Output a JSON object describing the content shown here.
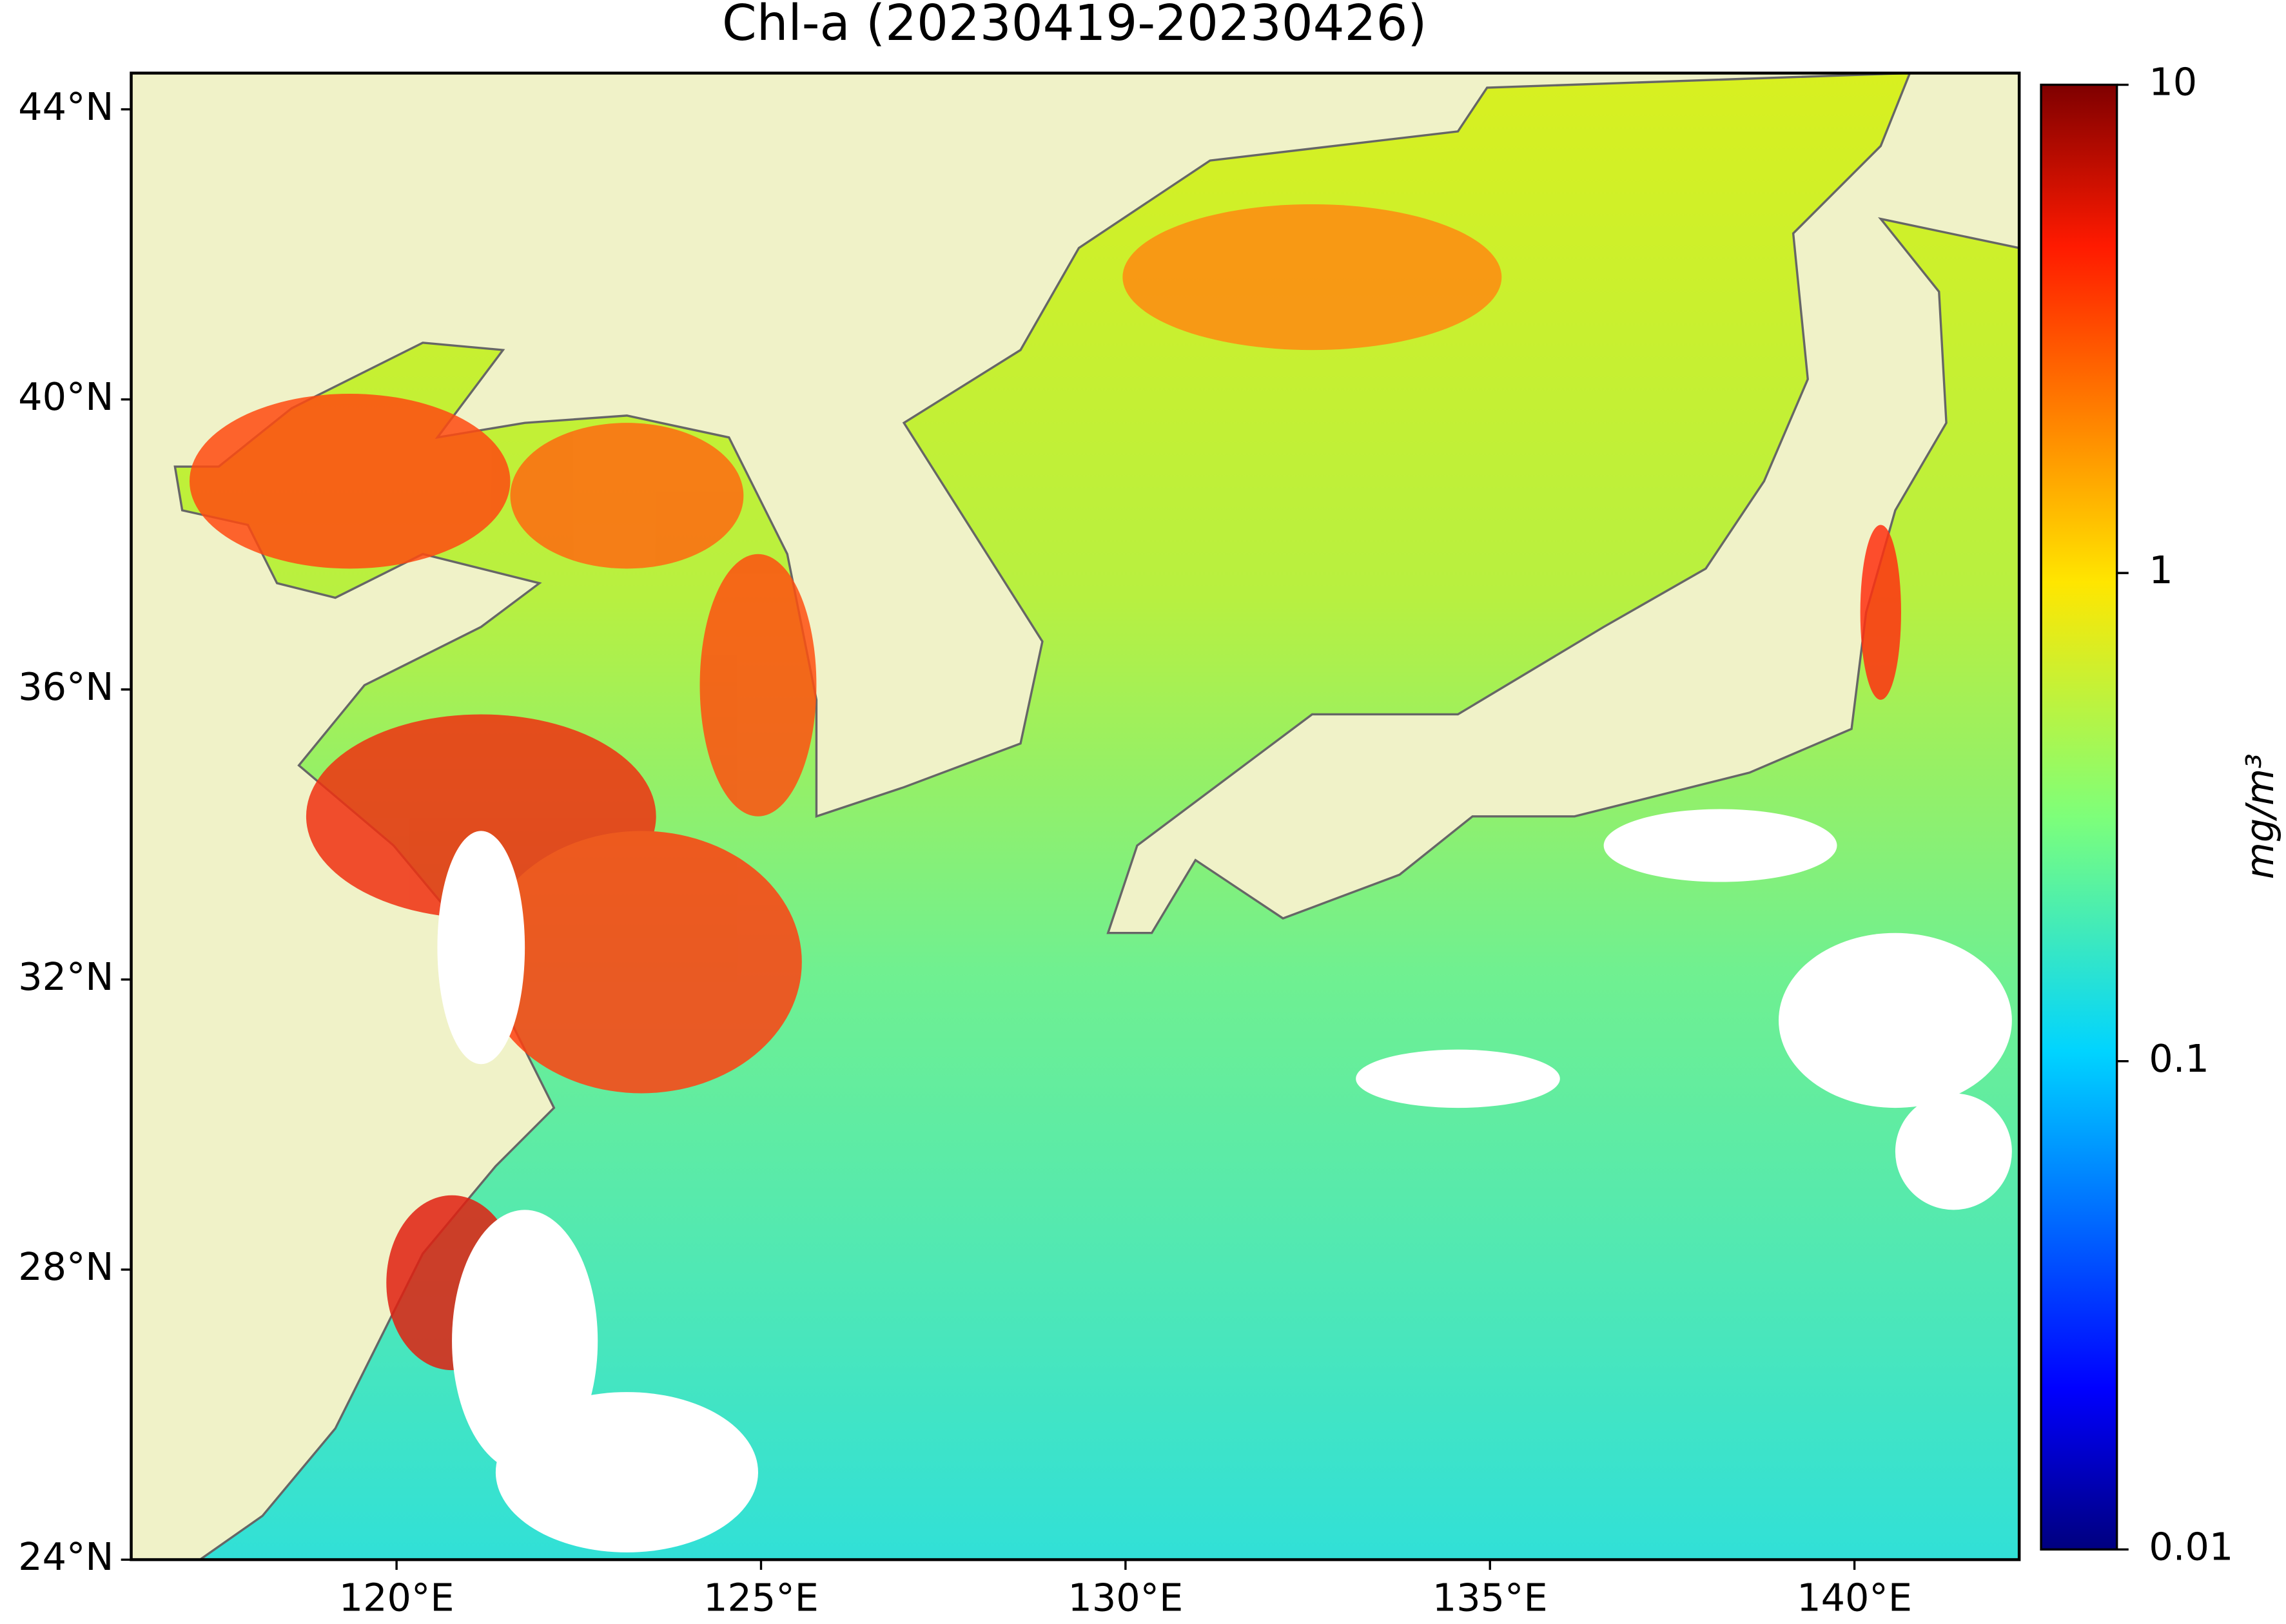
{
  "map": {
    "title": "Chl-a (20230419-20230426)",
    "xlim": [
      116.36,
      142.26
    ],
    "ylim": [
      24,
      44.5
    ],
    "xticks": [
      {
        "value": 120,
        "label": "120°E"
      },
      {
        "value": 125,
        "label": "125°E"
      },
      {
        "value": 130,
        "label": "130°E"
      },
      {
        "value": 135,
        "label": "135°E"
      },
      {
        "value": 140,
        "label": "140°E"
      }
    ],
    "yticks": [
      {
        "value": 24,
        "label": "24°N"
      },
      {
        "value": 28,
        "label": "28°N"
      },
      {
        "value": 32,
        "label": "32°N"
      },
      {
        "value": 36,
        "label": "36°N"
      },
      {
        "value": 40,
        "label": "40°N"
      },
      {
        "value": 44,
        "label": "44°N"
      }
    ],
    "colorbar": {
      "label": "mg/m³",
      "scale": "log",
      "lim": [
        0.01,
        10
      ],
      "ticks": [
        0.01,
        0.1,
        1,
        10
      ]
    }
  }
}
